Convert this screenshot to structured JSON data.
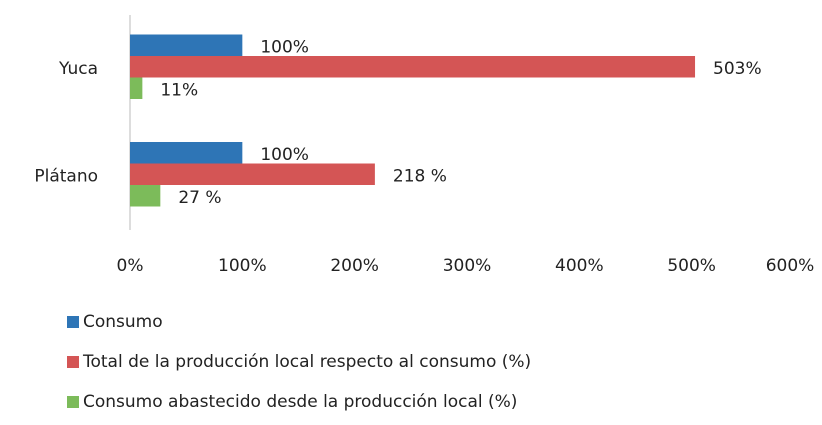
{
  "chart_data": {
    "type": "barh",
    "categories": [
      "Yuca",
      "Plátano"
    ],
    "series": [
      {
        "name": "Consumo",
        "color": "#2e75b6",
        "values": [
          100,
          100
        ],
        "value_labels": [
          "100%",
          "100%"
        ]
      },
      {
        "name": "Total de la producción local respecto al consumo (%)",
        "color": "#d45555",
        "values": [
          503,
          218
        ],
        "value_labels": [
          "503%",
          "218 %"
        ]
      },
      {
        "name": "Consumo abastecido desde la producción local (%)",
        "color": "#7cbb5a",
        "values": [
          11,
          27
        ],
        "value_labels": [
          "11%",
          "27 %"
        ]
      }
    ],
    "xlim": [
      0,
      600
    ],
    "xticks": [
      {
        "value": 0,
        "label": "0%"
      },
      {
        "value": 100,
        "label": "100%"
      },
      {
        "value": 200,
        "label": "200%"
      },
      {
        "value": 300,
        "label": "300%"
      },
      {
        "value": 400,
        "label": "400%"
      },
      {
        "value": 500,
        "label": "500%"
      },
      {
        "value": 600,
        "label": "600%"
      }
    ],
    "legend": "bottom"
  }
}
